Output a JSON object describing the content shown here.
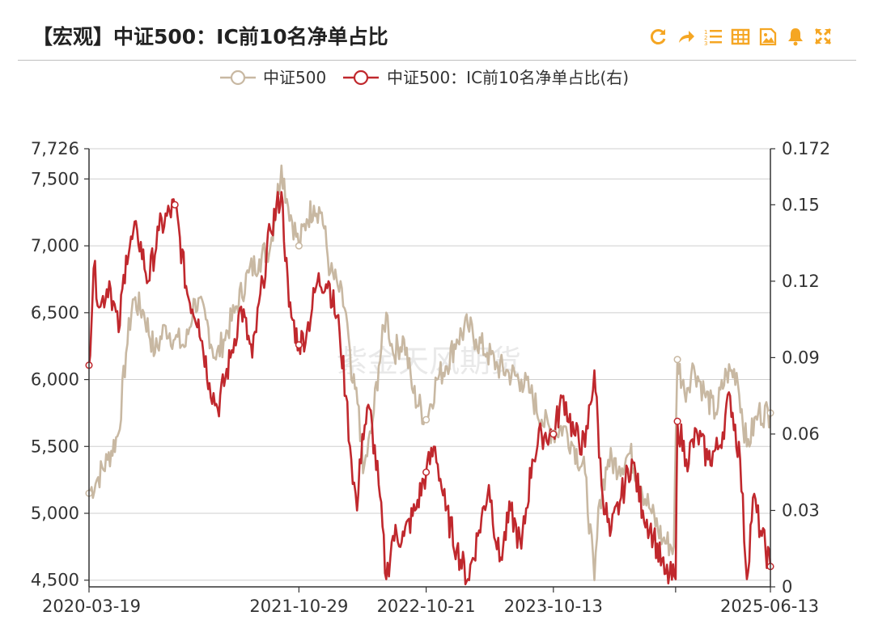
{
  "header": {
    "title": "【宏观】中证500：IC前10名净单占比",
    "tools": [
      {
        "icon": "refresh-icon",
        "color": "#F5A623"
      },
      {
        "icon": "share-icon",
        "color": "#F5A623"
      },
      {
        "icon": "list-icon",
        "color": "#F5A623"
      },
      {
        "icon": "table-icon",
        "color": "#F5A623"
      },
      {
        "icon": "image-icon",
        "color": "#F5A623"
      },
      {
        "icon": "bell-icon",
        "color": "#F5A623"
      },
      {
        "icon": "expand-icon",
        "color": "#F5A623"
      }
    ]
  },
  "watermark": "紫金天风期货",
  "chart_data": {
    "type": "line",
    "x_ticks": [
      "2020-03-19",
      "2021-10-29",
      "2022-10-21",
      "2023-10-13",
      "2025-06-13"
    ],
    "x_range": [
      "2020-03-19",
      "2025-06-13"
    ],
    "left_axis": {
      "ticks": [
        "7,726",
        "7,500",
        "7,000",
        "6,500",
        "6,000",
        "5,500",
        "5,000",
        "4,500"
      ],
      "range": [
        4450,
        7726
      ]
    },
    "right_axis": {
      "ticks": [
        "0.172",
        "0.15",
        "0.12",
        "0.09",
        "0.06",
        "0.03",
        "0"
      ],
      "range": [
        0,
        0.172
      ]
    },
    "grid": true,
    "legend_position": "top-center",
    "series": [
      {
        "name": "中证500",
        "axis": "left",
        "color": "#C8B8A2",
        "points": [
          [
            "2020-03-19",
            5150
          ],
          [
            "2020-04-10",
            5250
          ],
          [
            "2020-05-10",
            5400
          ],
          [
            "2020-06-10",
            5600
          ],
          [
            "2020-07-01",
            6200
          ],
          [
            "2020-07-20",
            6600
          ],
          [
            "2020-08-20",
            6500
          ],
          [
            "2020-09-20",
            6200
          ],
          [
            "2020-10-20",
            6400
          ],
          [
            "2020-11-15",
            6300
          ],
          [
            "2020-12-15",
            6250
          ],
          [
            "2021-01-10",
            6600
          ],
          [
            "2021-02-10",
            6450
          ],
          [
            "2021-03-10",
            6150
          ],
          [
            "2021-04-01",
            6300
          ],
          [
            "2021-05-01",
            6500
          ],
          [
            "2021-06-10",
            6800
          ],
          [
            "2021-07-10",
            6900
          ],
          [
            "2021-08-10",
            7000
          ],
          [
            "2021-09-10",
            7600
          ],
          [
            "2021-09-25",
            7350
          ],
          [
            "2021-10-29",
            7000
          ],
          [
            "2021-11-20",
            7200
          ],
          [
            "2021-12-10",
            7300
          ],
          [
            "2022-01-01",
            7250
          ],
          [
            "2022-01-25",
            6800
          ],
          [
            "2022-02-15",
            6700
          ],
          [
            "2022-03-10",
            6500
          ],
          [
            "2022-03-25",
            6000
          ],
          [
            "2022-04-15",
            5800
          ],
          [
            "2022-04-27",
            5300
          ],
          [
            "2022-05-20",
            5600
          ],
          [
            "2022-06-10",
            6100
          ],
          [
            "2022-07-01",
            6500
          ],
          [
            "2022-07-20",
            6200
          ],
          [
            "2022-08-20",
            6300
          ],
          [
            "2022-09-15",
            5900
          ],
          [
            "2022-10-21",
            5700
          ],
          [
            "2022-11-20",
            6000
          ],
          [
            "2022-12-15",
            6100
          ],
          [
            "2023-01-15",
            6300
          ],
          [
            "2023-02-15",
            6400
          ],
          [
            "2023-03-10",
            6300
          ],
          [
            "2023-04-10",
            6200
          ],
          [
            "2023-05-10",
            6100
          ],
          [
            "2023-06-10",
            6050
          ],
          [
            "2023-07-15",
            6000
          ],
          [
            "2023-08-10",
            5900
          ],
          [
            "2023-09-10",
            5700
          ],
          [
            "2023-10-13",
            5600
          ],
          [
            "2023-11-10",
            5650
          ],
          [
            "2023-12-10",
            5500
          ],
          [
            "2024-01-10",
            5300
          ],
          [
            "2024-02-05",
            4500
          ],
          [
            "2024-02-20",
            5100
          ],
          [
            "2024-03-15",
            5400
          ],
          [
            "2024-04-15",
            5350
          ],
          [
            "2024-05-15",
            5450
          ],
          [
            "2024-06-15",
            5200
          ],
          [
            "2024-07-15",
            5000
          ],
          [
            "2024-08-15",
            4800
          ],
          [
            "2024-09-15",
            4750
          ],
          [
            "2024-09-25",
            6150
          ],
          [
            "2024-10-15",
            5900
          ],
          [
            "2024-11-10",
            6100
          ],
          [
            "2024-12-10",
            5900
          ],
          [
            "2025-01-10",
            5750
          ],
          [
            "2025-02-10",
            6050
          ],
          [
            "2025-03-10",
            6050
          ],
          [
            "2025-04-08",
            5500
          ],
          [
            "2025-05-10",
            5750
          ],
          [
            "2025-06-13",
            5750
          ]
        ]
      },
      {
        "name": "中证500：IC前10名净单占比(右)",
        "axis": "right",
        "color": "#C0282D",
        "points": [
          [
            "2020-03-19",
            0.087
          ],
          [
            "2020-04-01",
            0.125
          ],
          [
            "2020-04-20",
            0.11
          ],
          [
            "2020-05-15",
            0.12
          ],
          [
            "2020-06-10",
            0.1
          ],
          [
            "2020-07-01",
            0.13
          ],
          [
            "2020-08-01",
            0.14
          ],
          [
            "2020-09-01",
            0.12
          ],
          [
            "2020-10-01",
            0.14
          ],
          [
            "2020-11-15",
            0.15
          ],
          [
            "2020-12-20",
            0.115
          ],
          [
            "2021-01-20",
            0.105
          ],
          [
            "2021-02-20",
            0.08
          ],
          [
            "2021-03-15",
            0.07
          ],
          [
            "2021-04-20",
            0.09
          ],
          [
            "2021-05-20",
            0.11
          ],
          [
            "2021-06-20",
            0.09
          ],
          [
            "2021-07-20",
            0.12
          ],
          [
            "2021-08-10",
            0.14
          ],
          [
            "2021-09-10",
            0.155
          ],
          [
            "2021-10-01",
            0.11
          ],
          [
            "2021-10-29",
            0.095
          ],
          [
            "2021-11-20",
            0.1
          ],
          [
            "2021-12-20",
            0.12
          ],
          [
            "2022-01-20",
            0.12
          ],
          [
            "2022-02-20",
            0.1
          ],
          [
            "2022-03-10",
            0.075
          ],
          [
            "2022-03-25",
            0.05
          ],
          [
            "2022-04-10",
            0.03
          ],
          [
            "2022-04-25",
            0.06
          ],
          [
            "2022-05-15",
            0.07
          ],
          [
            "2022-06-10",
            0.04
          ],
          [
            "2022-07-01",
            0.003
          ],
          [
            "2022-07-20",
            0.02
          ],
          [
            "2022-08-20",
            0.02
          ],
          [
            "2022-09-20",
            0.03
          ],
          [
            "2022-10-21",
            0.045
          ],
          [
            "2022-11-15",
            0.055
          ],
          [
            "2022-12-15",
            0.03
          ],
          [
            "2023-01-15",
            0.015
          ],
          [
            "2023-02-15",
            0.003
          ],
          [
            "2023-03-15",
            0.02
          ],
          [
            "2023-04-15",
            0.04
          ],
          [
            "2023-05-15",
            0.01
          ],
          [
            "2023-06-15",
            0.03
          ],
          [
            "2023-07-15",
            0.015
          ],
          [
            "2023-08-15",
            0.05
          ],
          [
            "2023-09-10",
            0.06
          ],
          [
            "2023-10-13",
            0.06
          ],
          [
            "2023-11-10",
            0.075
          ],
          [
            "2023-12-10",
            0.06
          ],
          [
            "2024-01-10",
            0.055
          ],
          [
            "2024-02-05",
            0.085
          ],
          [
            "2024-02-25",
            0.04
          ],
          [
            "2024-03-20",
            0.02
          ],
          [
            "2024-04-20",
            0.035
          ],
          [
            "2024-05-20",
            0.05
          ],
          [
            "2024-06-20",
            0.03
          ],
          [
            "2024-07-20",
            0.02
          ],
          [
            "2024-08-20",
            0.005
          ],
          [
            "2024-09-20",
            0.003
          ],
          [
            "2024-09-25",
            0.065
          ],
          [
            "2024-10-20",
            0.05
          ],
          [
            "2024-11-20",
            0.06
          ],
          [
            "2024-12-20",
            0.05
          ],
          [
            "2025-01-20",
            0.055
          ],
          [
            "2025-02-20",
            0.075
          ],
          [
            "2025-03-20",
            0.05
          ],
          [
            "2025-04-08",
            0.003
          ],
          [
            "2025-04-25",
            0.035
          ],
          [
            "2025-05-20",
            0.02
          ],
          [
            "2025-06-13",
            0.008
          ]
        ]
      }
    ],
    "marked_points": [
      {
        "series": 0,
        "x": "2020-03-19",
        "y": 5150
      },
      {
        "series": 0,
        "x": "2021-10-29",
        "y": 7000
      },
      {
        "series": 0,
        "x": "2022-10-21",
        "y": 5700
      },
      {
        "series": 0,
        "x": "2023-10-13",
        "y": 5600
      },
      {
        "series": 0,
        "x": "2024-09-25",
        "y": 6150
      },
      {
        "series": 0,
        "x": "2025-06-13",
        "y": 5750
      },
      {
        "series": 1,
        "x": "2020-03-19",
        "y": 0.087
      },
      {
        "series": 1,
        "x": "2020-11-15",
        "y": 0.15
      },
      {
        "series": 1,
        "x": "2021-10-29",
        "y": 0.095
      },
      {
        "series": 1,
        "x": "2022-10-21",
        "y": 0.045
      },
      {
        "series": 1,
        "x": "2023-10-13",
        "y": 0.06
      },
      {
        "series": 1,
        "x": "2024-09-25",
        "y": 0.065
      },
      {
        "series": 1,
        "x": "2025-06-13",
        "y": 0.008
      }
    ]
  }
}
